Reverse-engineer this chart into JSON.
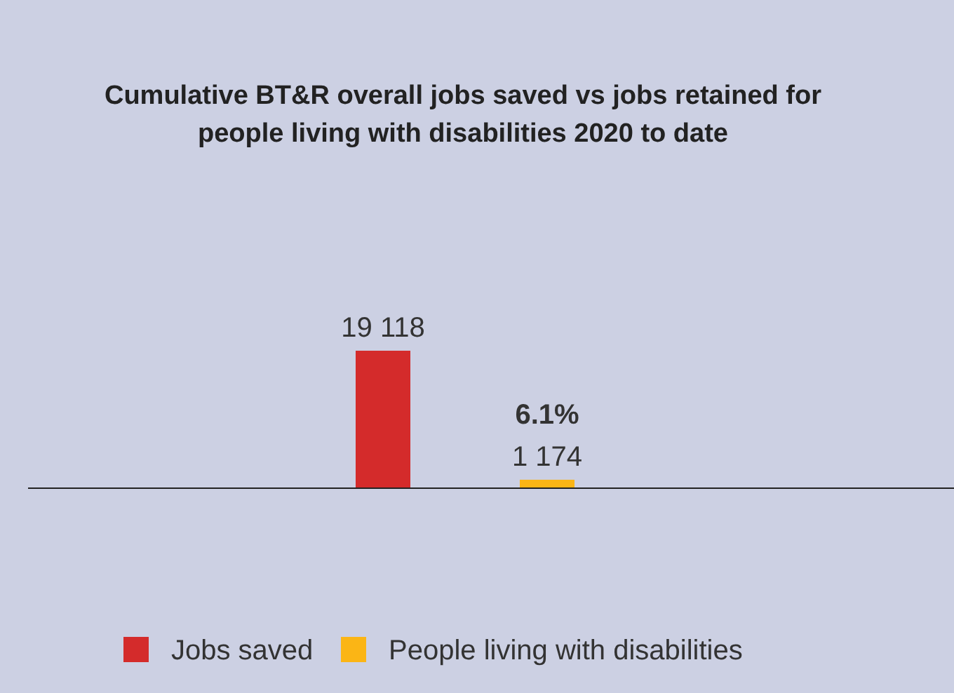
{
  "chart_data": {
    "type": "bar",
    "title": "Cumulative BT&R overall jobs saved vs jobs retained for people living with disabilities 2020 to date",
    "categories": [
      null,
      null
    ],
    "series": [
      {
        "name": "Jobs saved",
        "color": "#d42b2b",
        "values": [
          19118,
          null
        ],
        "value_labels": [
          "19 118",
          null
        ]
      },
      {
        "name": "People living with disabilities",
        "color": "#fbb515",
        "values": [
          null,
          1174
        ],
        "value_labels": [
          null,
          "1 174"
        ]
      }
    ],
    "stacked": true,
    "annotations": [
      "6.1%"
    ],
    "legend": "bottom"
  }
}
